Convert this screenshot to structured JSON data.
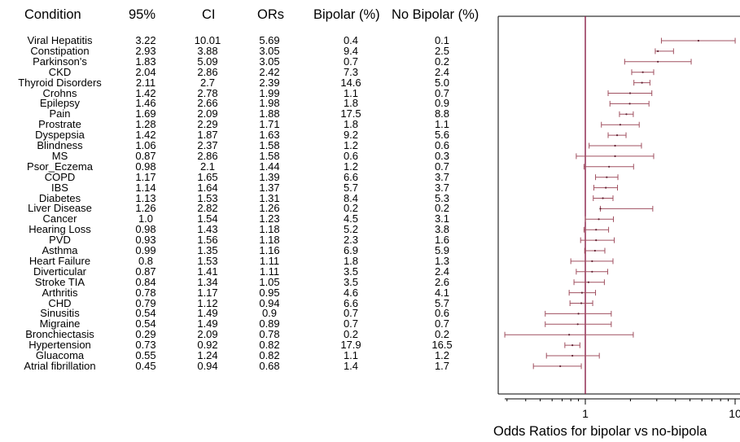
{
  "table": {
    "headers": {
      "condition": "Condition",
      "ci_lower": "95%",
      "ci_upper": "CI",
      "ors": "ORs",
      "bipolar": "Bipolar (%)",
      "no_bipolar": "No Bipolar (%)"
    }
  },
  "chart_data": {
    "type": "forest",
    "xlabel": "Odds Ratios for bipolar vs no-bipola",
    "x_scale": "log",
    "x_ticks": [
      "1",
      "10"
    ],
    "xlim": [
      0.25,
      10
    ],
    "reference_line": 1,
    "colors": {
      "interval": "#a05060",
      "reference": "#8a2048",
      "axis": "#000000"
    },
    "rows": [
      {
        "condition": "Viral Hepatitis",
        "lower": "3.22",
        "upper": "10.01",
        "or": "5.69",
        "bipolar": "0.4",
        "no_bipolar": "0.1"
      },
      {
        "condition": "Constipation",
        "lower": "2.93",
        "upper": "3.88",
        "or": "3.05",
        "bipolar": "9.4",
        "no_bipolar": "2.5"
      },
      {
        "condition": "Parkinson's",
        "lower": "1.83",
        "upper": "5.09",
        "or": "3.05",
        "bipolar": "0.7",
        "no_bipolar": "0.2"
      },
      {
        "condition": "CKD",
        "lower": "2.04",
        "upper": "2.86",
        "or": "2.42",
        "bipolar": "7.3",
        "no_bipolar": "2.4"
      },
      {
        "condition": "Thyroid Disorders",
        "lower": "2.11",
        "upper": "2.7",
        "or": "2.39",
        "bipolar": "14.6",
        "no_bipolar": "5.0"
      },
      {
        "condition": "Crohns",
        "lower": "1.42",
        "upper": "2.78",
        "or": "1.99",
        "bipolar": "1.1",
        "no_bipolar": "0.7"
      },
      {
        "condition": "Epilepsy",
        "lower": "1.46",
        "upper": "2.66",
        "or": "1.98",
        "bipolar": "1.8",
        "no_bipolar": "0.9"
      },
      {
        "condition": "Pain",
        "lower": "1.69",
        "upper": "2.09",
        "or": "1.88",
        "bipolar": "17.5",
        "no_bipolar": "8.8"
      },
      {
        "condition": "Prostrate",
        "lower": "1.28",
        "upper": "2.29",
        "or": "1.71",
        "bipolar": "1.8",
        "no_bipolar": "1.1"
      },
      {
        "condition": "Dyspepsia",
        "lower": "1.42",
        "upper": "1.87",
        "or": "1.63",
        "bipolar": "9.2",
        "no_bipolar": "5.6"
      },
      {
        "condition": "Blindness",
        "lower": "1.06",
        "upper": "2.37",
        "or": "1.58",
        "bipolar": "1.2",
        "no_bipolar": "0.6"
      },
      {
        "condition": "MS",
        "lower": "0.87",
        "upper": "2.86",
        "or": "1.58",
        "bipolar": "0.6",
        "no_bipolar": "0.3"
      },
      {
        "condition": "Psor_Eczema",
        "lower": "0.98",
        "upper": "2.1",
        "or": "1.44",
        "bipolar": "1.2",
        "no_bipolar": "0.7"
      },
      {
        "condition": "COPD",
        "lower": "1.17",
        "upper": "1.65",
        "or": "1.39",
        "bipolar": "6.6",
        "no_bipolar": "3.7"
      },
      {
        "condition": "IBS",
        "lower": "1.14",
        "upper": "1.64",
        "or": "1.37",
        "bipolar": "5.7",
        "no_bipolar": "3.7"
      },
      {
        "condition": "Diabetes",
        "lower": "1.13",
        "upper": "1.53",
        "or": "1.31",
        "bipolar": "8.4",
        "no_bipolar": "5.3"
      },
      {
        "condition": "Liver Disease",
        "lower": "1.26",
        "upper": "2.82",
        "or": "1.26",
        "bipolar": "0.2",
        "no_bipolar": "0.2"
      },
      {
        "condition": "Cancer",
        "lower": "1.0",
        "upper": "1.54",
        "or": "1.23",
        "bipolar": "4.5",
        "no_bipolar": "3.1"
      },
      {
        "condition": "Hearing Loss",
        "lower": "0.98",
        "upper": "1.43",
        "or": "1.18",
        "bipolar": "5.2",
        "no_bipolar": "3.8"
      },
      {
        "condition": "PVD",
        "lower": "0.93",
        "upper": "1.56",
        "or": "1.18",
        "bipolar": "2.3",
        "no_bipolar": "1.6"
      },
      {
        "condition": "Asthma",
        "lower": "0.99",
        "upper": "1.35",
        "or": "1.16",
        "bipolar": "6.9",
        "no_bipolar": "5.9"
      },
      {
        "condition": "Heart Failure",
        "lower": "0.8",
        "upper": "1.53",
        "or": "1.11",
        "bipolar": "1.8",
        "no_bipolar": "1.3"
      },
      {
        "condition": "Diverticular",
        "lower": "0.87",
        "upper": "1.41",
        "or": "1.11",
        "bipolar": "3.5",
        "no_bipolar": "2.4"
      },
      {
        "condition": "Stroke TIA",
        "lower": "0.84",
        "upper": "1.34",
        "or": "1.05",
        "bipolar": "3.5",
        "no_bipolar": "2.6"
      },
      {
        "condition": "Arthritis",
        "lower": "0.78",
        "upper": "1.17",
        "or": "0.95",
        "bipolar": "4.6",
        "no_bipolar": "4.1"
      },
      {
        "condition": "CHD",
        "lower": "0.79",
        "upper": "1.12",
        "or": "0.94",
        "bipolar": "6.6",
        "no_bipolar": "5.7"
      },
      {
        "condition": "Sinusitis",
        "lower": "0.54",
        "upper": "1.49",
        "or": "0.9",
        "bipolar": "0.7",
        "no_bipolar": "0.6"
      },
      {
        "condition": "Migraine",
        "lower": "0.54",
        "upper": "1.49",
        "or": "0.89",
        "bipolar": "0.7",
        "no_bipolar": "0.7"
      },
      {
        "condition": "Bronchiectasis",
        "lower": "0.29",
        "upper": "2.09",
        "or": "0.78",
        "bipolar": "0.2",
        "no_bipolar": "0.2"
      },
      {
        "condition": "Hypertension",
        "lower": "0.73",
        "upper": "0.92",
        "or": "0.82",
        "bipolar": "17.9",
        "no_bipolar": "16.5"
      },
      {
        "condition": "Gluacoma",
        "lower": "0.55",
        "upper": "1.24",
        "or": "0.82",
        "bipolar": "1.1",
        "no_bipolar": "1.2"
      },
      {
        "condition": "Atrial fibrillation",
        "lower": "0.45",
        "upper": "0.94",
        "or": "0.68",
        "bipolar": "1.4",
        "no_bipolar": "1.7"
      }
    ]
  }
}
